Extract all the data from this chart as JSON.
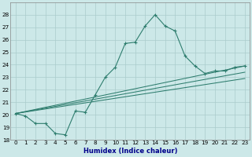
{
  "xlabel": "Humidex (Indice chaleur)",
  "x_values": [
    0,
    1,
    2,
    3,
    4,
    5,
    6,
    7,
    8,
    9,
    10,
    11,
    12,
    13,
    14,
    15,
    16,
    17,
    18,
    19,
    20,
    21,
    22,
    23
  ],
  "main_line_y": [
    20.1,
    19.9,
    19.3,
    19.3,
    18.5,
    18.4,
    20.3,
    20.2,
    21.6,
    23.0,
    23.8,
    25.7,
    25.8,
    27.1,
    28.0,
    27.1,
    26.7,
    24.7,
    23.9,
    23.3,
    23.5,
    23.5,
    23.8,
    23.9
  ],
  "straight_lines": [
    {
      "x_start": 0,
      "y_start": 20.1,
      "x_end": 23,
      "y_end": 23.9
    },
    {
      "x_start": 0,
      "y_start": 20.1,
      "x_end": 23,
      "y_end": 23.4
    },
    {
      "x_start": 0,
      "y_start": 20.1,
      "x_end": 23,
      "y_end": 22.9
    }
  ],
  "ylim": [
    18,
    29
  ],
  "xlim": [
    -0.5,
    23.5
  ],
  "yticks": [
    18,
    19,
    20,
    21,
    22,
    23,
    24,
    25,
    26,
    27,
    28
  ],
  "xticks": [
    0,
    1,
    2,
    3,
    4,
    5,
    6,
    7,
    8,
    9,
    10,
    11,
    12,
    13,
    14,
    15,
    16,
    17,
    18,
    19,
    20,
    21,
    22,
    23
  ],
  "line_color": "#2e7d6e",
  "bg_color": "#cce8e8",
  "grid_color": "#aacccc",
  "xlabel_color": "#00008b",
  "tick_fontsize": 5.2,
  "xlabel_fontsize": 6.0
}
